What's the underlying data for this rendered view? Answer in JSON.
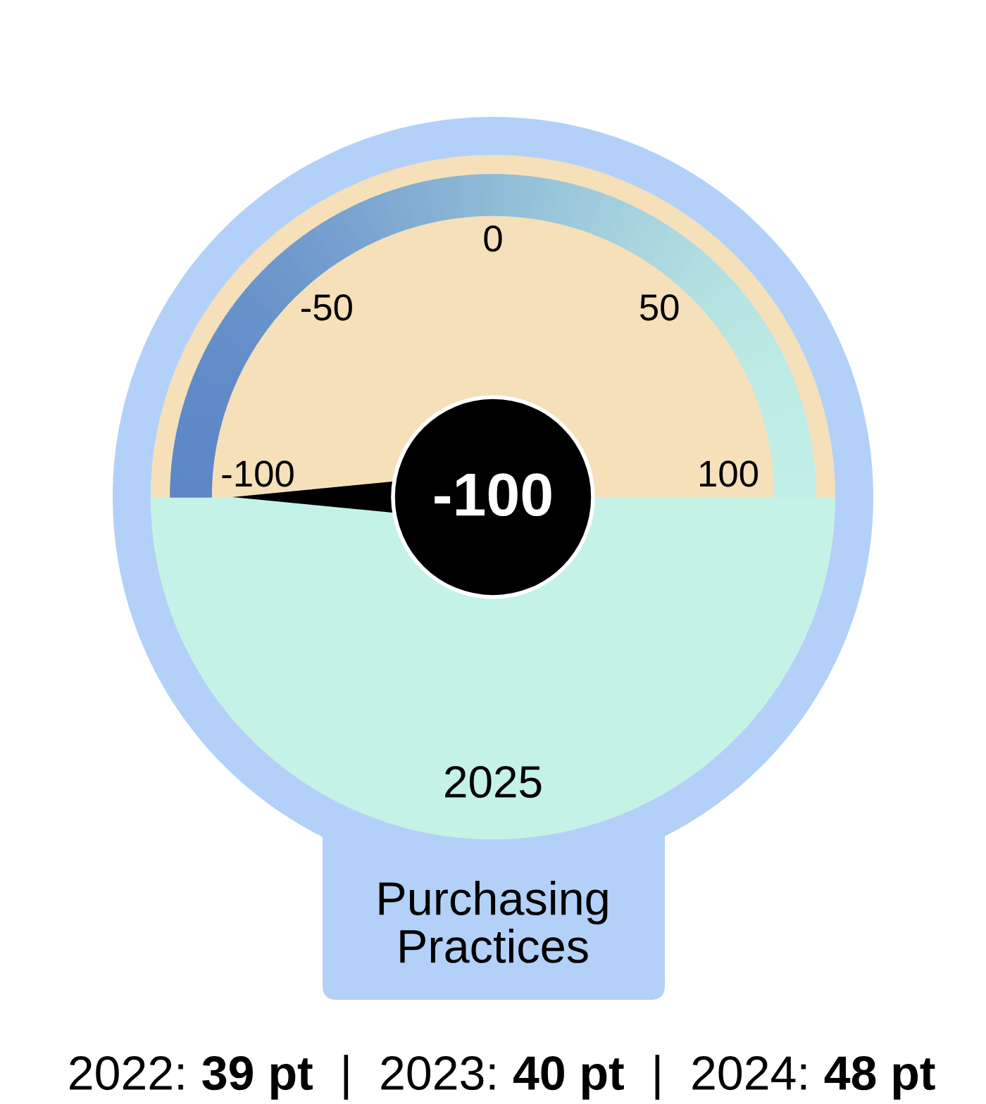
{
  "chart_data": {
    "type": "other",
    "title": "Purchasing Practices",
    "subtitle": "2025",
    "categories": [
      "-100",
      "-50",
      "0",
      "50",
      "100"
    ],
    "needle": "-100",
    "values": [
      -100,
      null,
      null,
      null,
      null
    ],
    "data_labels": true,
    "color": "#000000",
    "annotations": [
      "2022: 39 pt  |  2023: 40 pt  |  2024: 48 pt"
    ]
  }
}
